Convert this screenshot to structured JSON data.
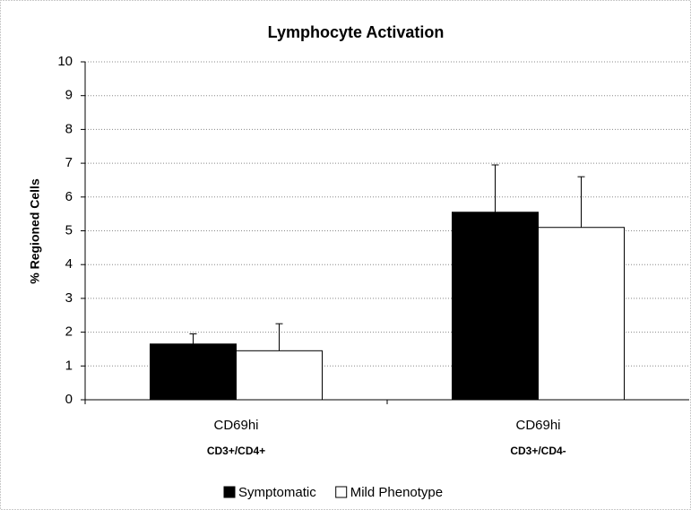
{
  "chart_data": {
    "type": "bar",
    "title": "Lymphocyte Activation",
    "y_label": "% Regioned Cells",
    "categories": [
      "CD69hi",
      "CD69hi"
    ],
    "category_sublabels": [
      "CD3+/CD4+",
      "CD3+/CD4-"
    ],
    "series": [
      {
        "name": "Symptomatic",
        "color": "#000000",
        "values": [
          1.65,
          5.55
        ],
        "errors": [
          0.3,
          1.4
        ]
      },
      {
        "name": "Mild Phenotype",
        "color": "#ffffff",
        "values": [
          1.45,
          5.1
        ],
        "errors": [
          0.8,
          1.5
        ]
      }
    ],
    "ylim": [
      0,
      10
    ],
    "yticks": [
      0,
      1,
      2,
      3,
      4,
      5,
      6,
      7,
      8,
      9,
      10
    ],
    "grid": true,
    "legend": "bottom"
  }
}
